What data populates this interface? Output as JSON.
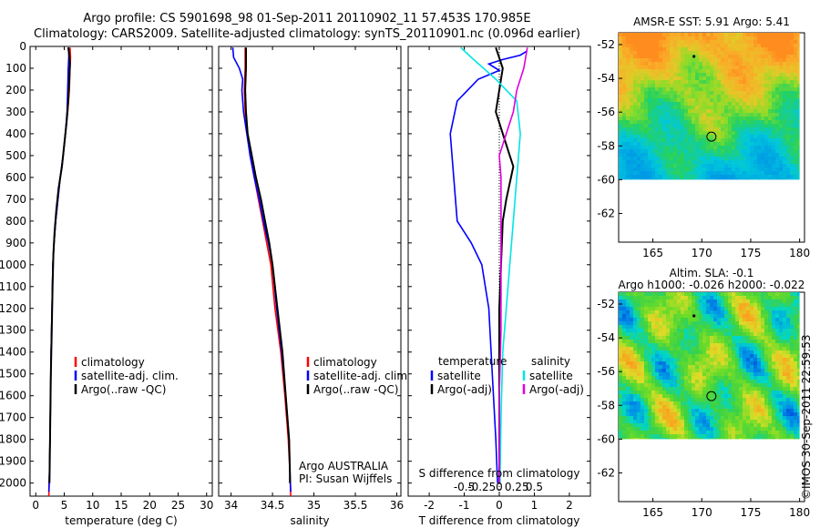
{
  "header": {
    "title_line1": "Argo profile: CS 5901698_98 01-Sep-2011 20110902_11 57.453S 170.985E",
    "title_line2": "Climatology: CARS2009. Satellite-adjusted climatology: synTS_20110901.nc (0.096d earlier)"
  },
  "side_note": "©IMOS 30-Sep-2011 22:59:53",
  "colors": {
    "climatology": "#ff0000",
    "satellite": "#0000ff",
    "argo": "#000000",
    "salinity_satellite": "#00e5e5",
    "salinity_argo": "#e000e0"
  },
  "chart_data": [
    {
      "id": "temperature",
      "type": "line",
      "xlabel": "temperature (deg C)",
      "xlim": [
        -1,
        31
      ],
      "xticks": [
        0,
        5,
        10,
        15,
        20,
        25,
        30
      ],
      "ylim": [
        2060,
        0
      ],
      "yticks": [
        0,
        100,
        200,
        300,
        400,
        500,
        600,
        700,
        800,
        900,
        1000,
        1100,
        1200,
        1300,
        1400,
        1500,
        1600,
        1700,
        1800,
        1900,
        2000
      ],
      "legend": [
        "climatology",
        "satellite-adj. clim.",
        "Argo(..raw -QC)"
      ],
      "series": [
        {
          "name": "climatology",
          "color": "#ff0000",
          "points": [
            [
              6.0,
              5
            ],
            [
              6.1,
              50
            ],
            [
              6.0,
              100
            ],
            [
              5.9,
              200
            ],
            [
              5.6,
              300
            ],
            [
              5.2,
              400
            ],
            [
              4.8,
              500
            ],
            [
              4.3,
              600
            ],
            [
              3.9,
              700
            ],
            [
              3.5,
              800
            ],
            [
              3.2,
              900
            ],
            [
              3.0,
              1000
            ],
            [
              2.85,
              1200
            ],
            [
              2.7,
              1400
            ],
            [
              2.6,
              1600
            ],
            [
              2.5,
              1800
            ],
            [
              2.4,
              1950
            ],
            [
              2.3,
              2060
            ]
          ]
        },
        {
          "name": "satellite-adj. clim.",
          "color": "#0000ff",
          "points": [
            [
              5.8,
              5
            ],
            [
              5.8,
              50
            ],
            [
              5.7,
              100
            ],
            [
              5.6,
              200
            ],
            [
              5.5,
              300
            ],
            [
              5.2,
              400
            ],
            [
              4.8,
              500
            ],
            [
              4.3,
              600
            ],
            [
              3.9,
              700
            ],
            [
              3.5,
              800
            ],
            [
              3.2,
              900
            ],
            [
              3.0,
              1000
            ],
            [
              2.85,
              1200
            ],
            [
              2.7,
              1400
            ],
            [
              2.6,
              1600
            ],
            [
              2.5,
              1800
            ],
            [
              2.4,
              1950
            ],
            [
              2.3,
              2040
            ]
          ]
        },
        {
          "name": "Argo(..raw -QC)",
          "color": "#000000",
          "points": [
            [
              5.7,
              5
            ],
            [
              5.9,
              40
            ],
            [
              6.0,
              80
            ],
            [
              5.9,
              150
            ],
            [
              5.7,
              250
            ],
            [
              5.4,
              350
            ],
            [
              5.0,
              450
            ],
            [
              4.6,
              550
            ],
            [
              4.0,
              650
            ],
            [
              3.6,
              750
            ],
            [
              3.3,
              850
            ],
            [
              3.1,
              950
            ],
            [
              2.95,
              1100
            ],
            [
              2.8,
              1300
            ],
            [
              2.65,
              1500
            ],
            [
              2.55,
              1700
            ],
            [
              2.45,
              1900
            ],
            [
              2.4,
              2000
            ]
          ]
        }
      ]
    },
    {
      "id": "salinity",
      "type": "line",
      "xlabel": "salinity",
      "xlim": [
        33.85,
        36.05
      ],
      "xticks": [
        34,
        34.5,
        35,
        35.5,
        36
      ],
      "ylim": [
        2060,
        0
      ],
      "legend": [
        "climatology",
        "satellite-adj. clim.",
        "Argo(..raw -QC)"
      ],
      "annotations": [
        "Argo AUSTRALIA",
        "PI: Susan Wijffels"
      ],
      "series": [
        {
          "name": "climatology",
          "color": "#ff0000",
          "points": [
            [
              34.17,
              5
            ],
            [
              34.17,
              100
            ],
            [
              34.16,
              200
            ],
            [
              34.17,
              300
            ],
            [
              34.2,
              400
            ],
            [
              34.23,
              500
            ],
            [
              34.28,
              600
            ],
            [
              34.33,
              700
            ],
            [
              34.38,
              800
            ],
            [
              34.43,
              900
            ],
            [
              34.48,
              1000
            ],
            [
              34.53,
              1200
            ],
            [
              34.6,
              1400
            ],
            [
              34.65,
              1600
            ],
            [
              34.69,
              1800
            ],
            [
              34.71,
              1950
            ],
            [
              34.72,
              2060
            ]
          ]
        },
        {
          "name": "satellite-adj. clim.",
          "color": "#0000ff",
          "points": [
            [
              34.02,
              5
            ],
            [
              34.03,
              50
            ],
            [
              34.1,
              100
            ],
            [
              34.14,
              150
            ],
            [
              34.13,
              200
            ],
            [
              34.15,
              300
            ],
            [
              34.19,
              400
            ],
            [
              34.23,
              500
            ],
            [
              34.28,
              600
            ],
            [
              34.34,
              700
            ],
            [
              34.39,
              800
            ],
            [
              34.45,
              900
            ],
            [
              34.5,
              1000
            ],
            [
              34.55,
              1200
            ],
            [
              34.61,
              1400
            ],
            [
              34.66,
              1600
            ],
            [
              34.7,
              1800
            ],
            [
              34.71,
              1950
            ],
            [
              34.72,
              2040
            ]
          ]
        },
        {
          "name": "Argo(..raw -QC)",
          "color": "#000000",
          "points": [
            [
              34.18,
              5
            ],
            [
              34.18,
              100
            ],
            [
              34.17,
              200
            ],
            [
              34.18,
              300
            ],
            [
              34.2,
              400
            ],
            [
              34.25,
              500
            ],
            [
              34.3,
              600
            ],
            [
              34.36,
              700
            ],
            [
              34.41,
              800
            ],
            [
              34.46,
              900
            ],
            [
              34.5,
              1000
            ],
            [
              34.56,
              1200
            ],
            [
              34.62,
              1400
            ],
            [
              34.66,
              1600
            ],
            [
              34.7,
              1800
            ],
            [
              34.71,
              1950
            ],
            [
              34.71,
              2000
            ]
          ]
        }
      ]
    },
    {
      "id": "difference",
      "type": "line",
      "xlabel": "T difference from climatology",
      "xlabel_top": "S difference from climatology",
      "xlim": [
        -2.6,
        2.6
      ],
      "xticks": [
        -2,
        -1,
        0,
        1,
        2
      ],
      "sticks_labels": [
        "-0.5",
        "-0.25",
        "0",
        "0.25",
        "0.5"
      ],
      "ylim": [
        2060,
        0
      ],
      "legend_temperature": {
        "title": "temperature",
        "items": [
          "satellite",
          "Argo(-adj)"
        ]
      },
      "legend_salinity": {
        "title": "salinity",
        "items": [
          "satellite",
          "Argo(-adj)"
        ]
      },
      "series": [
        {
          "name": "T satellite",
          "color": "#0000ff",
          "points": [
            [
              0.8,
              20
            ],
            [
              0.6,
              40
            ],
            [
              0.1,
              60
            ],
            [
              -0.3,
              80
            ],
            [
              0.0,
              110
            ],
            [
              -0.6,
              150
            ],
            [
              -1.2,
              250
            ],
            [
              -1.4,
              400
            ],
            [
              -1.3,
              600
            ],
            [
              -1.2,
              800
            ],
            [
              -0.8,
              900
            ],
            [
              -0.5,
              1000
            ],
            [
              -0.3,
              1200
            ],
            [
              -0.2,
              1500
            ],
            [
              -0.1,
              1800
            ],
            [
              -0.05,
              2000
            ]
          ]
        },
        {
          "name": "T Argo(-adj)",
          "color": "#000000",
          "points": [
            [
              -0.1,
              5
            ],
            [
              0.1,
              100
            ],
            [
              0.0,
              200
            ],
            [
              -0.1,
              300
            ],
            [
              0.3,
              500
            ],
            [
              0.4,
              550
            ],
            [
              0.2,
              700
            ],
            [
              0.1,
              800
            ],
            [
              0.05,
              1000
            ],
            [
              0.0,
              1200
            ],
            [
              0.0,
              1500
            ],
            [
              0.0,
              1800
            ],
            [
              0.0,
              2000
            ]
          ]
        },
        {
          "name": "S satellite",
          "color": "#00e5e5",
          "points": [
            [
              -1.1,
              5
            ],
            [
              -0.8,
              50
            ],
            [
              -0.1,
              150
            ],
            [
              0.5,
              250
            ],
            [
              0.6,
              400
            ],
            [
              0.5,
              600
            ],
            [
              0.4,
              800
            ],
            [
              0.3,
              1000
            ],
            [
              0.2,
              1200
            ],
            [
              0.1,
              1400
            ],
            [
              0.05,
              1700
            ],
            [
              0.02,
              2000
            ]
          ]
        },
        {
          "name": "S Argo(-adj)",
          "color": "#e000e0",
          "points": [
            [
              0.8,
              5
            ],
            [
              0.7,
              100
            ],
            [
              0.5,
              200
            ],
            [
              0.4,
              300
            ],
            [
              0.1,
              450
            ],
            [
              0.0,
              500
            ],
            [
              0.05,
              600
            ],
            [
              0.05,
              800
            ],
            [
              0.05,
              1000
            ],
            [
              0.05,
              1300
            ],
            [
              0.0,
              1600
            ],
            [
              0.0,
              2000
            ]
          ]
        }
      ]
    },
    {
      "id": "sst_map",
      "type": "heatmap",
      "title": "AMSR-E SST: 5.91  Argo: 5.41",
      "xlim": [
        161.5,
        180.5
      ],
      "ylim": [
        -63.7,
        -51.3
      ],
      "xticks": [
        165,
        170,
        175,
        180
      ],
      "yticks": [
        -52,
        -54,
        -56,
        -58,
        -60,
        -62
      ],
      "argo_position": [
        170.985,
        -57.453
      ],
      "marker_dot": [
        169.2,
        -52.7
      ]
    },
    {
      "id": "sla_map",
      "type": "heatmap",
      "title": "Altim. SLA: -0.1",
      "subtitle": "Argo h1000: -0.026 h2000: -0.022",
      "xlim": [
        161.5,
        180.5
      ],
      "ylim": [
        -63.7,
        -51.3
      ],
      "xticks": [
        165,
        170,
        175,
        180
      ],
      "yticks": [
        -52,
        -54,
        -56,
        -58,
        -60,
        -62
      ],
      "argo_position": [
        170.985,
        -57.453
      ],
      "marker_dot": [
        169.2,
        -52.7
      ]
    }
  ]
}
